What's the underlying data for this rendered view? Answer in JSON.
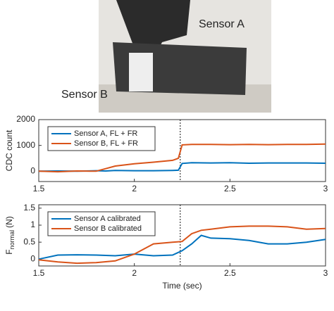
{
  "photo": {
    "labels": [
      "Sensor A",
      "Sensor B"
    ]
  },
  "chart_data": [
    {
      "type": "line",
      "ylabel": "CDC count",
      "x": [
        1.5,
        1.6,
        1.7,
        1.8,
        1.85,
        1.9,
        2.0,
        2.1,
        2.2,
        2.23,
        2.25,
        2.3,
        2.4,
        2.5,
        2.6,
        2.7,
        2.8,
        2.9,
        3.0
      ],
      "series": [
        {
          "name": "Sensor A, FL + FR",
          "color": "#0072bd",
          "values": [
            0,
            10,
            0,
            20,
            10,
            30,
            20,
            20,
            30,
            40,
            300,
            330,
            320,
            330,
            310,
            320,
            320,
            320,
            310
          ]
        },
        {
          "name": "Sensor B, FL + FR",
          "color": "#d95319",
          "values": [
            0,
            -20,
            10,
            0,
            100,
            200,
            290,
            350,
            420,
            500,
            1020,
            1040,
            1040,
            1030,
            1040,
            1030,
            1040,
            1040,
            1050
          ]
        }
      ],
      "xlim": [
        1.5,
        3
      ],
      "xticks": [
        1.5,
        2,
        2.5,
        3
      ],
      "ylim": [
        -400,
        2000
      ],
      "yticks": [
        0,
        1000,
        2000
      ],
      "vline": 2.24,
      "legend": "upper left"
    },
    {
      "type": "line",
      "ylabel": "F",
      "ylabel_sub": "normal",
      "ylabel_unit": "(N)",
      "xlabel": "Time (sec)",
      "x": [
        1.5,
        1.6,
        1.7,
        1.8,
        1.9,
        2.0,
        2.1,
        2.2,
        2.25,
        2.3,
        2.35,
        2.4,
        2.5,
        2.6,
        2.7,
        2.8,
        2.9,
        3.0
      ],
      "series": [
        {
          "name": "Sensor A calibrated",
          "color": "#0072bd",
          "values": [
            0,
            0.12,
            0.13,
            0.12,
            0.1,
            0.15,
            0.1,
            0.12,
            0.25,
            0.45,
            0.7,
            0.62,
            0.6,
            0.55,
            0.45,
            0.45,
            0.5,
            0.58
          ]
        },
        {
          "name": "Sensor B calibrated",
          "color": "#d95319",
          "values": [
            -0.02,
            -0.08,
            -0.12,
            -0.1,
            -0.05,
            0.15,
            0.45,
            0.5,
            0.52,
            0.75,
            0.85,
            0.88,
            0.95,
            0.97,
            0.97,
            0.95,
            0.88,
            0.9
          ]
        }
      ],
      "xlim": [
        1.5,
        3
      ],
      "xticks": [
        1.5,
        2,
        2.5,
        3
      ],
      "ylim": [
        -0.2,
        1.6
      ],
      "yticks": [
        0,
        0.5,
        1,
        1.5
      ],
      "vline": 2.24,
      "legend": "upper left"
    }
  ]
}
